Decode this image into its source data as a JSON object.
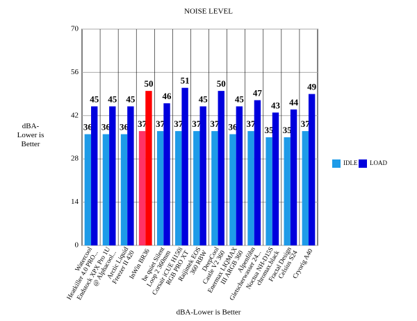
{
  "chart_data": {
    "type": "bar",
    "title": "NOISE LEVEL",
    "y_label": "dBA-Lower is Better",
    "x_label": "dBA-Lower is Better",
    "categories": [
      "Watercool Heatkiller 4.0 PRO...",
      "Endstock XPX Pro 1U @ Alphacool...",
      "Arctic Liquid Freezer II 420",
      "InWin BR36",
      "be quiet Silent Loop 2 360mm",
      "Corsair iCUE H150i RGB PRO XT",
      "Raijintek EOS 360 RBW",
      "DeepCool Castle V2 360",
      "Enermax LIQMAX III ARGB 360",
      "Alpenföhn Gletscherwasser 24...",
      "Noctua NH-D15S chromax.black",
      "Fractal Design Celsius S24",
      "Cryorig A40"
    ],
    "series": [
      {
        "name": "IDLE",
        "color": "#1e9be8",
        "highlight_color": "#ff3366",
        "values": [
          36,
          36,
          36,
          37,
          37,
          37,
          37,
          37,
          36,
          37,
          35,
          35,
          37
        ]
      },
      {
        "name": "LOAD",
        "color": "#0000dd",
        "highlight_color": "#ff0000",
        "values": [
          45,
          45,
          45,
          50,
          46,
          51,
          45,
          50,
          45,
          47,
          43,
          44,
          49
        ]
      }
    ],
    "highlight_index": 3,
    "ylim": [
      0,
      70
    ],
    "yticks": [
      0,
      14,
      28,
      42,
      56,
      70
    ],
    "grid": true,
    "legend": "right"
  }
}
